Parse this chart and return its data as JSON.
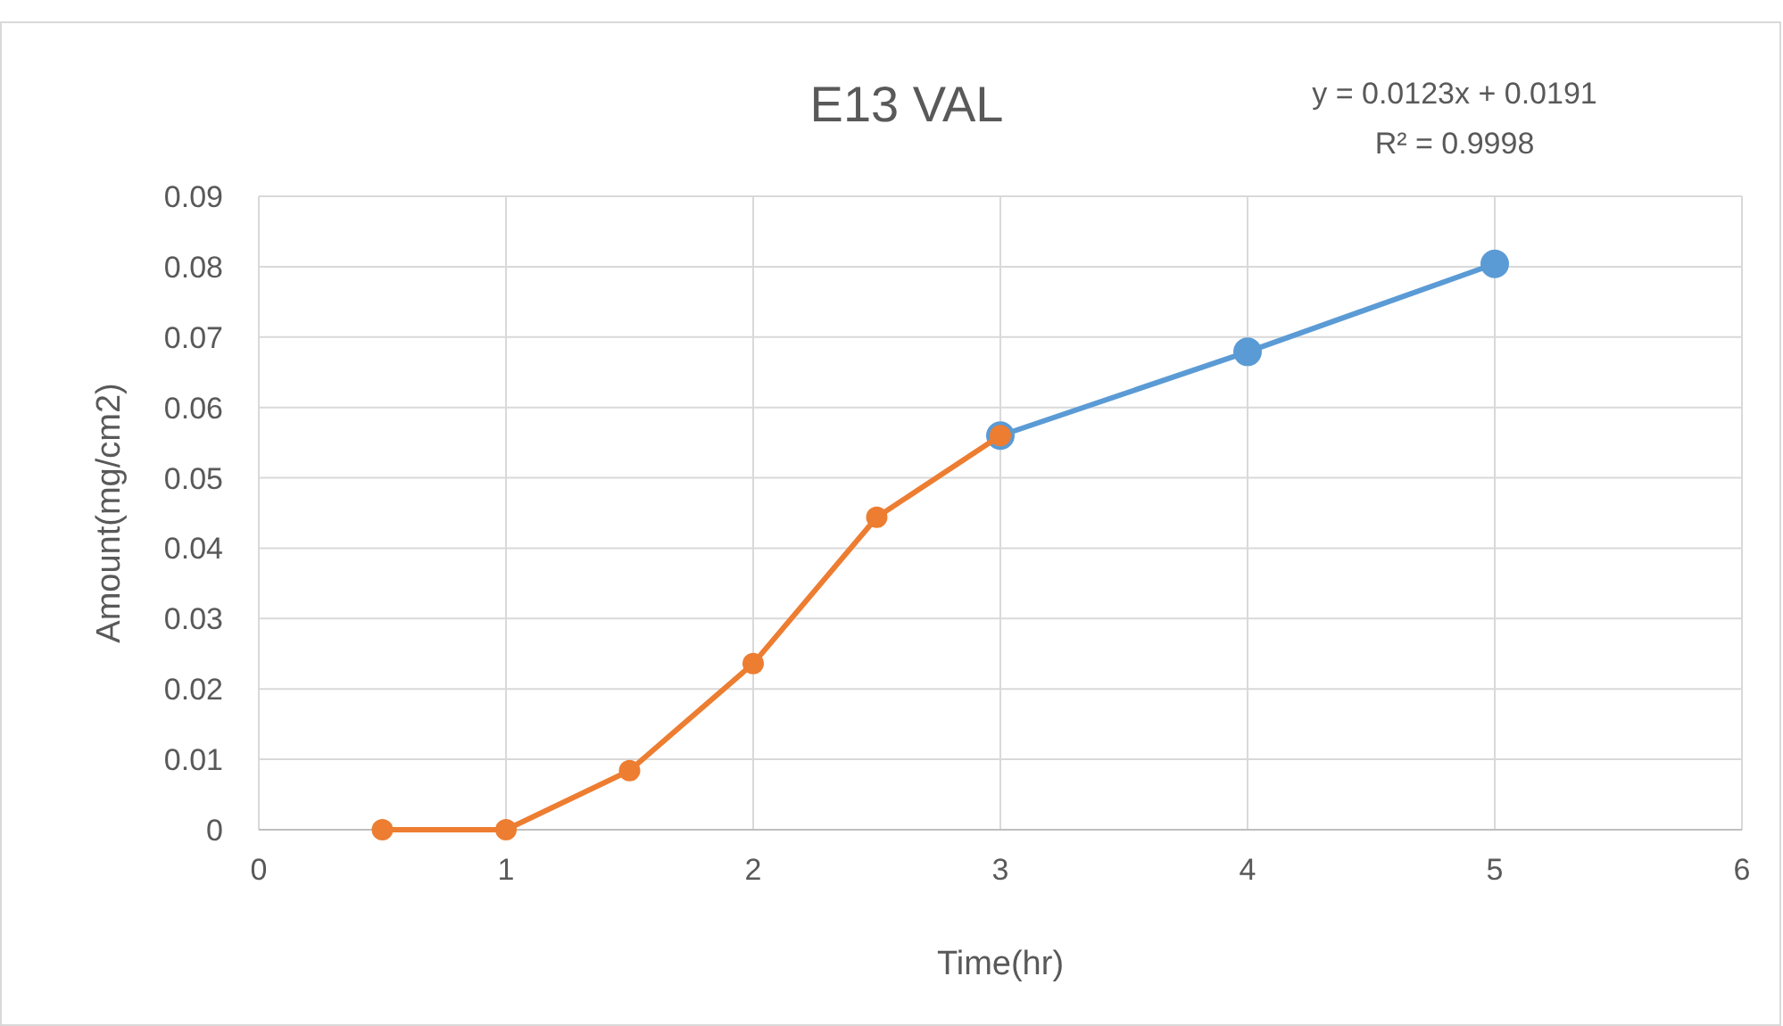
{
  "chart_data": {
    "type": "line",
    "title": "E13 VAL",
    "xlabel": "Time(hr)",
    "ylabel": "Amount(mg/cm2)",
    "xlim": [
      0,
      6
    ],
    "xticks": [
      0,
      1,
      2,
      3,
      4,
      5,
      6
    ],
    "ylim": [
      0,
      0.09
    ],
    "yticks": [
      0,
      0.01,
      0.02,
      0.03,
      0.04,
      0.05,
      0.06,
      0.07,
      0.08,
      0.09
    ],
    "grid": true,
    "marker": "circle",
    "line_style": "solid",
    "annotations": [
      "y = 0.0123x + 0.0191",
      "R² = 0.9998"
    ],
    "series": [
      {
        "color": "#ed7d31",
        "x": [
          0.5,
          1,
          1.5,
          2,
          2.5,
          3
        ],
        "values": [
          0,
          0,
          0.0084,
          0.0236,
          0.0444,
          0.056
        ]
      },
      {
        "color": "#5b9bd5",
        "x": [
          3,
          4,
          5
        ],
        "values": [
          0.056,
          0.0679,
          0.0804
        ]
      }
    ]
  }
}
